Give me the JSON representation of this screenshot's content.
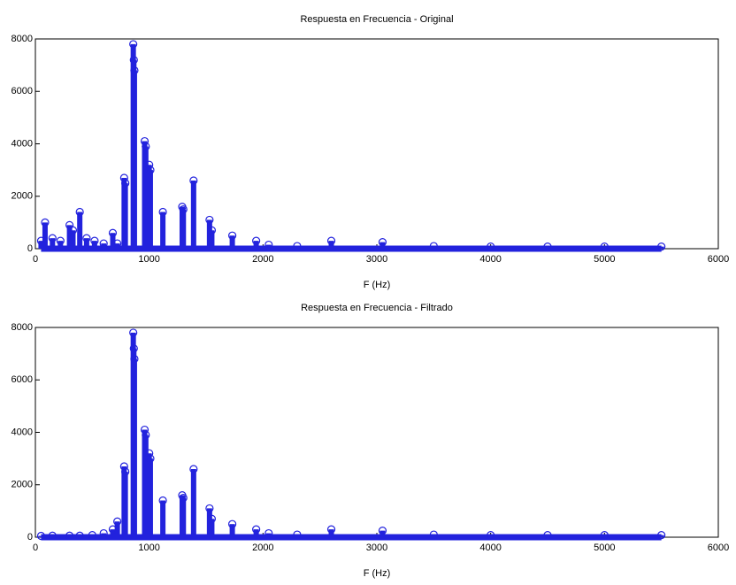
{
  "chart_data": [
    {
      "type": "stem",
      "title": "Respuesta en Frecuencia - Original",
      "x_label": "F (Hz)",
      "color": "#2222dd",
      "grid": false,
      "xlim": [
        0,
        6000
      ],
      "xticks": [
        0,
        1000,
        2000,
        3000,
        4000,
        5000,
        6000
      ],
      "ylim": [
        0,
        8000
      ],
      "yticks": [
        0,
        2000,
        4000,
        6000,
        8000
      ],
      "x": [
        50,
        85,
        150,
        220,
        300,
        330,
        390,
        450,
        520,
        600,
        680,
        720,
        780,
        790,
        860,
        865,
        870,
        960,
        970,
        1000,
        1010,
        1120,
        1290,
        1300,
        1390,
        1530,
        1550,
        1730,
        1940,
        2050,
        2300,
        2600,
        3050,
        3500,
        4000,
        4500,
        5000,
        5500
      ],
      "values": [
        300,
        1000,
        400,
        300,
        900,
        700,
        1400,
        400,
        300,
        200,
        600,
        200,
        2700,
        2500,
        7800,
        7200,
        6800,
        4100,
        3900,
        3200,
        3000,
        1400,
        1600,
        1500,
        2600,
        1100,
        700,
        500,
        300,
        150,
        100,
        300,
        250,
        100,
        80,
        80,
        80,
        80
      ]
    },
    {
      "type": "stem",
      "title": "Respuesta en Frecuencia - Filtrado",
      "x_label": "F (Hz)",
      "color": "#2222dd",
      "grid": false,
      "xlim": [
        0,
        6000
      ],
      "xticks": [
        0,
        1000,
        2000,
        3000,
        4000,
        5000,
        6000
      ],
      "ylim": [
        0,
        8000
      ],
      "yticks": [
        0,
        2000,
        4000,
        6000,
        8000
      ],
      "x": [
        50,
        150,
        300,
        390,
        500,
        600,
        680,
        720,
        780,
        790,
        860,
        865,
        870,
        960,
        970,
        1000,
        1010,
        1120,
        1290,
        1300,
        1390,
        1530,
        1550,
        1730,
        1940,
        2050,
        2300,
        2600,
        3050,
        3500,
        4000,
        4500,
        5000,
        5500
      ],
      "values": [
        50,
        60,
        60,
        60,
        80,
        150,
        300,
        600,
        2700,
        2500,
        7800,
        7200,
        6800,
        4100,
        3900,
        3200,
        3000,
        1400,
        1600,
        1500,
        2600,
        1100,
        700,
        500,
        300,
        150,
        100,
        300,
        250,
        100,
        80,
        80,
        80,
        80
      ]
    }
  ]
}
